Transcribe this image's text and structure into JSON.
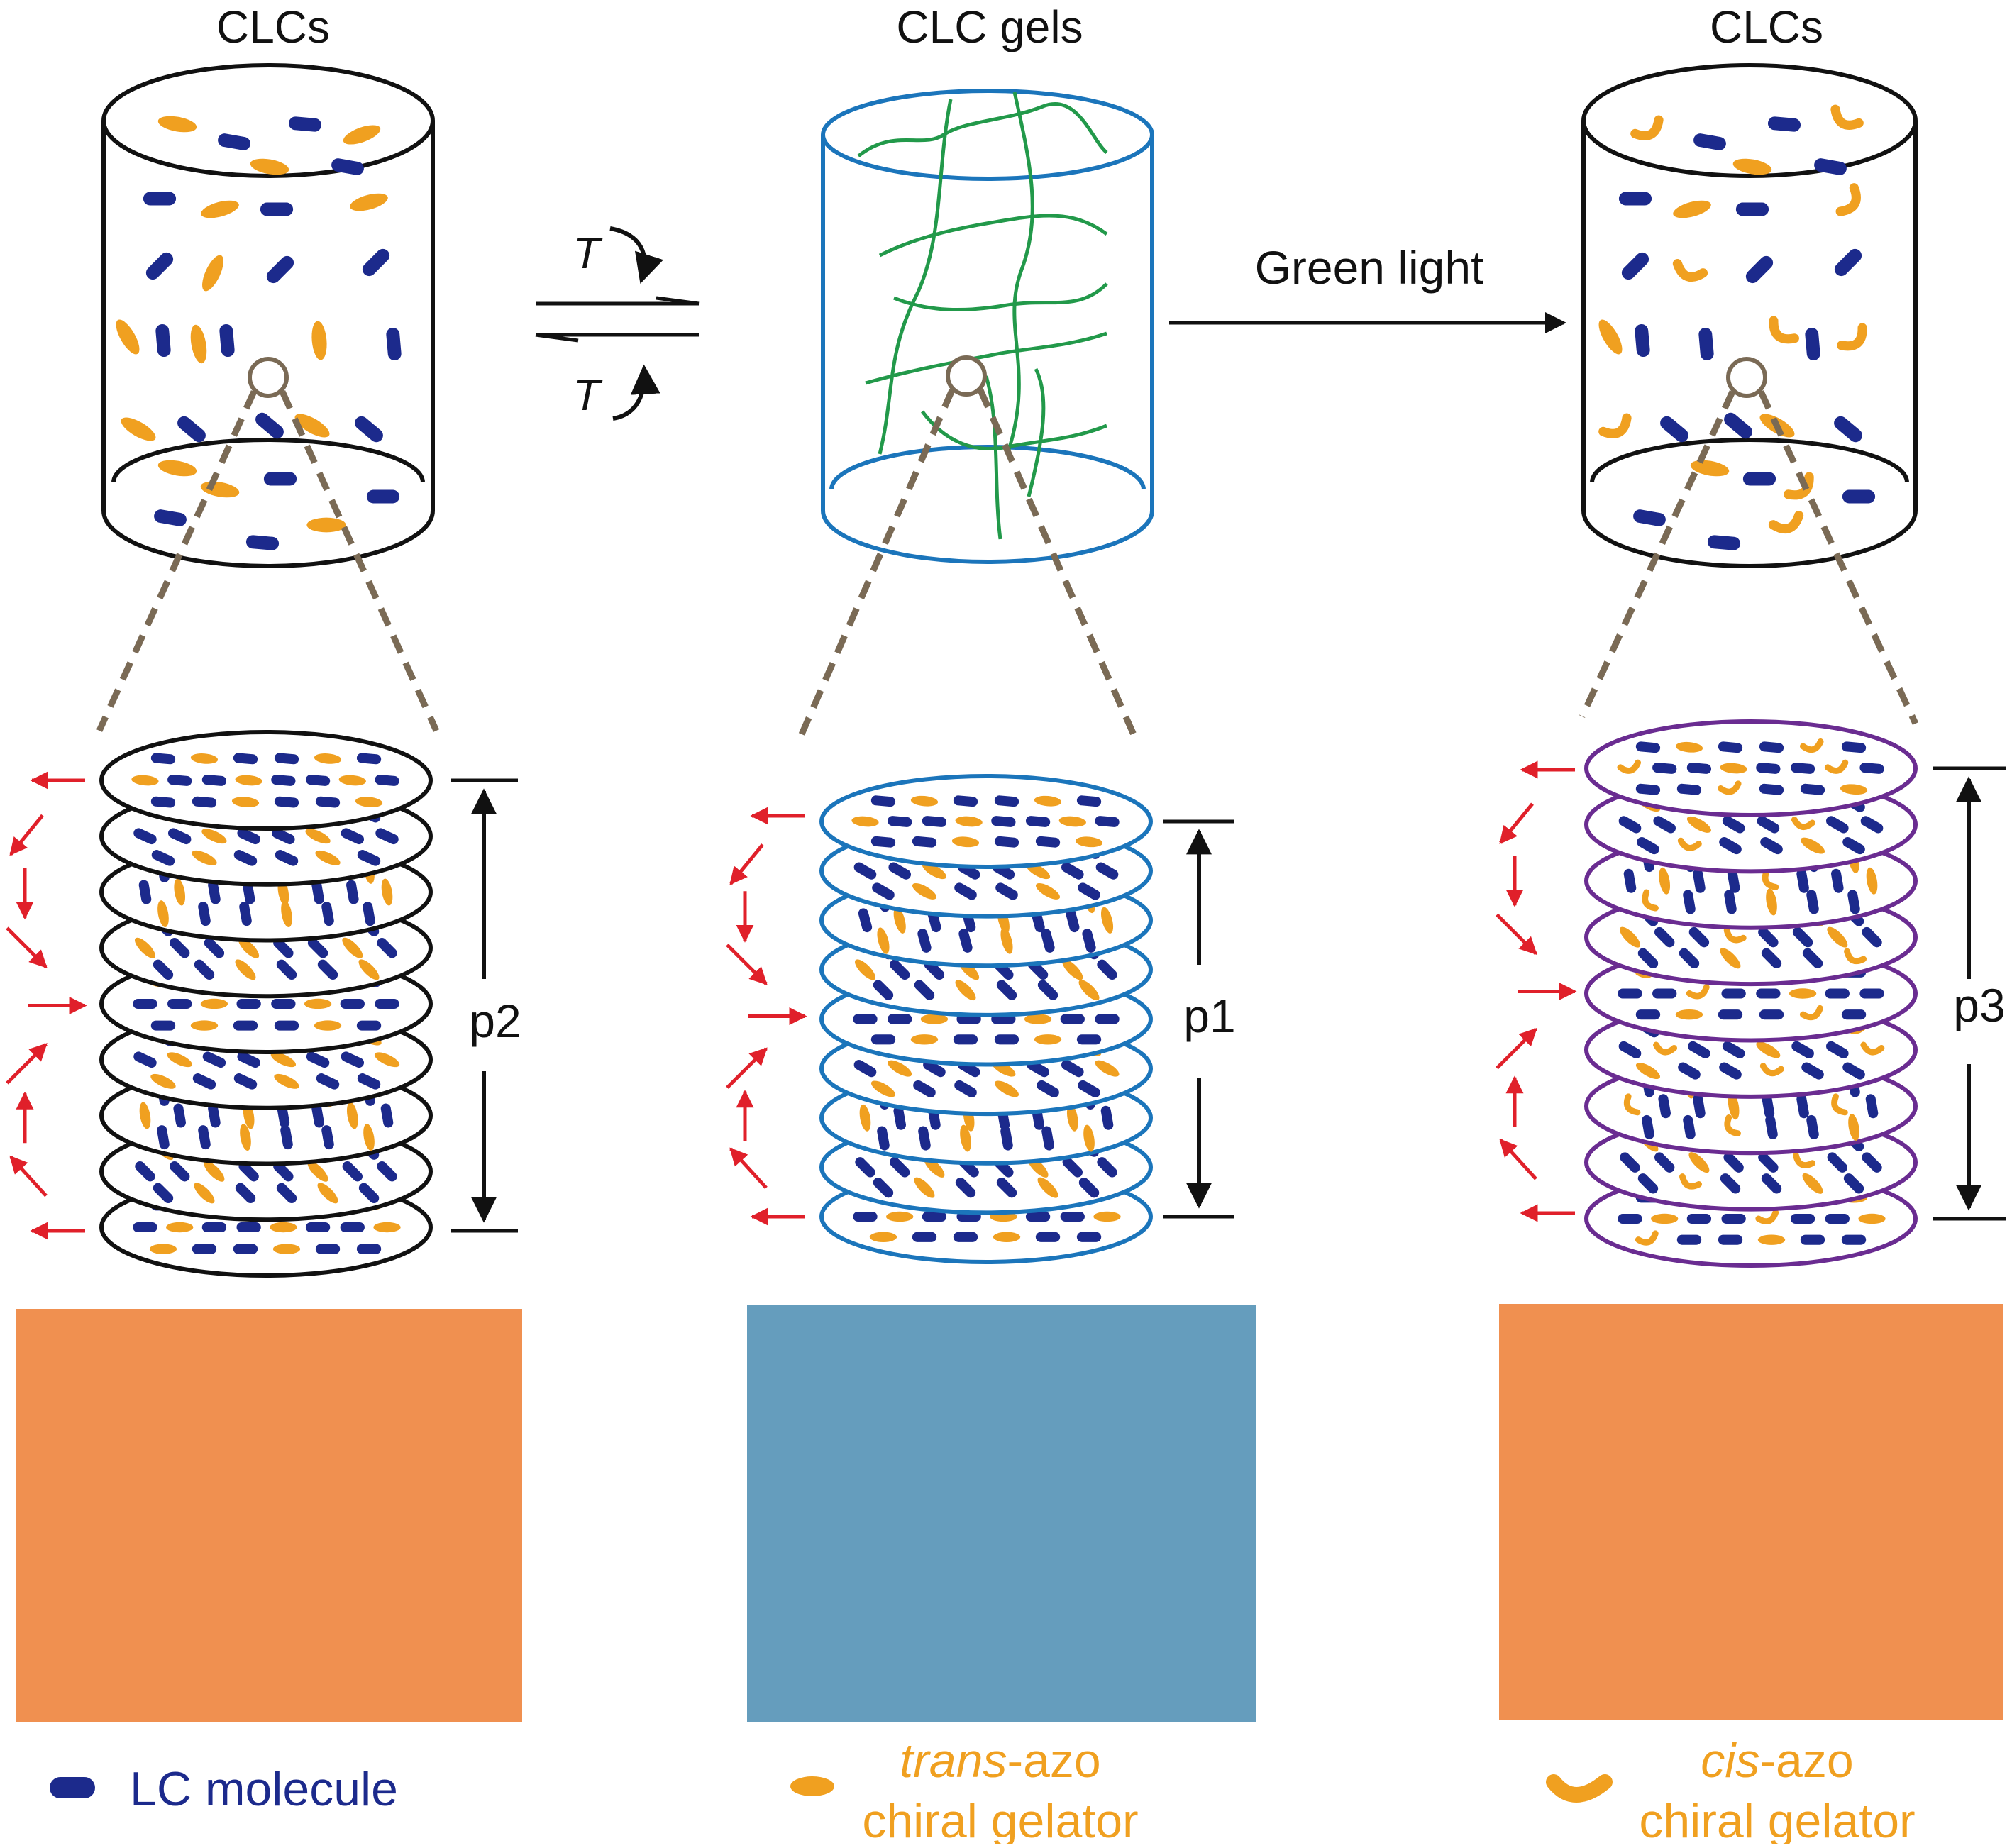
{
  "panels": [
    {
      "title": "CLCs",
      "pitch_label": "p2",
      "swatch_color": "#F09050",
      "container_color": "#111111"
    },
    {
      "title": "CLC gels",
      "pitch_label": "p1",
      "swatch_color": "#659DBD",
      "container_color": "#1B75BB"
    },
    {
      "title": "CLCs",
      "pitch_label": "p3",
      "swatch_color": "#F09050",
      "container_color": "#6A2C91"
    }
  ],
  "transitions": {
    "reversible": {
      "label_forward": "T",
      "label_backward": "T"
    },
    "light": {
      "label": "Green light"
    }
  },
  "legend": {
    "lc_molecule": {
      "text": "LC molecule",
      "color": "#1C2A8C"
    },
    "trans_azo": {
      "prefix": "trans",
      "suffix": "-azo",
      "line2": "chiral gelator",
      "color": "#F0A020"
    },
    "cis_azo": {
      "prefix": "cis",
      "suffix": "-azo",
      "line2": "chiral gelator",
      "color": "#F0A020"
    }
  },
  "colors": {
    "lc_molecule": "#1C2A8C",
    "azo": "#F0A020",
    "gel_fiber": "#22994A",
    "helix_arrow": "#E0202A",
    "zoom_line": "#7A6A55"
  }
}
